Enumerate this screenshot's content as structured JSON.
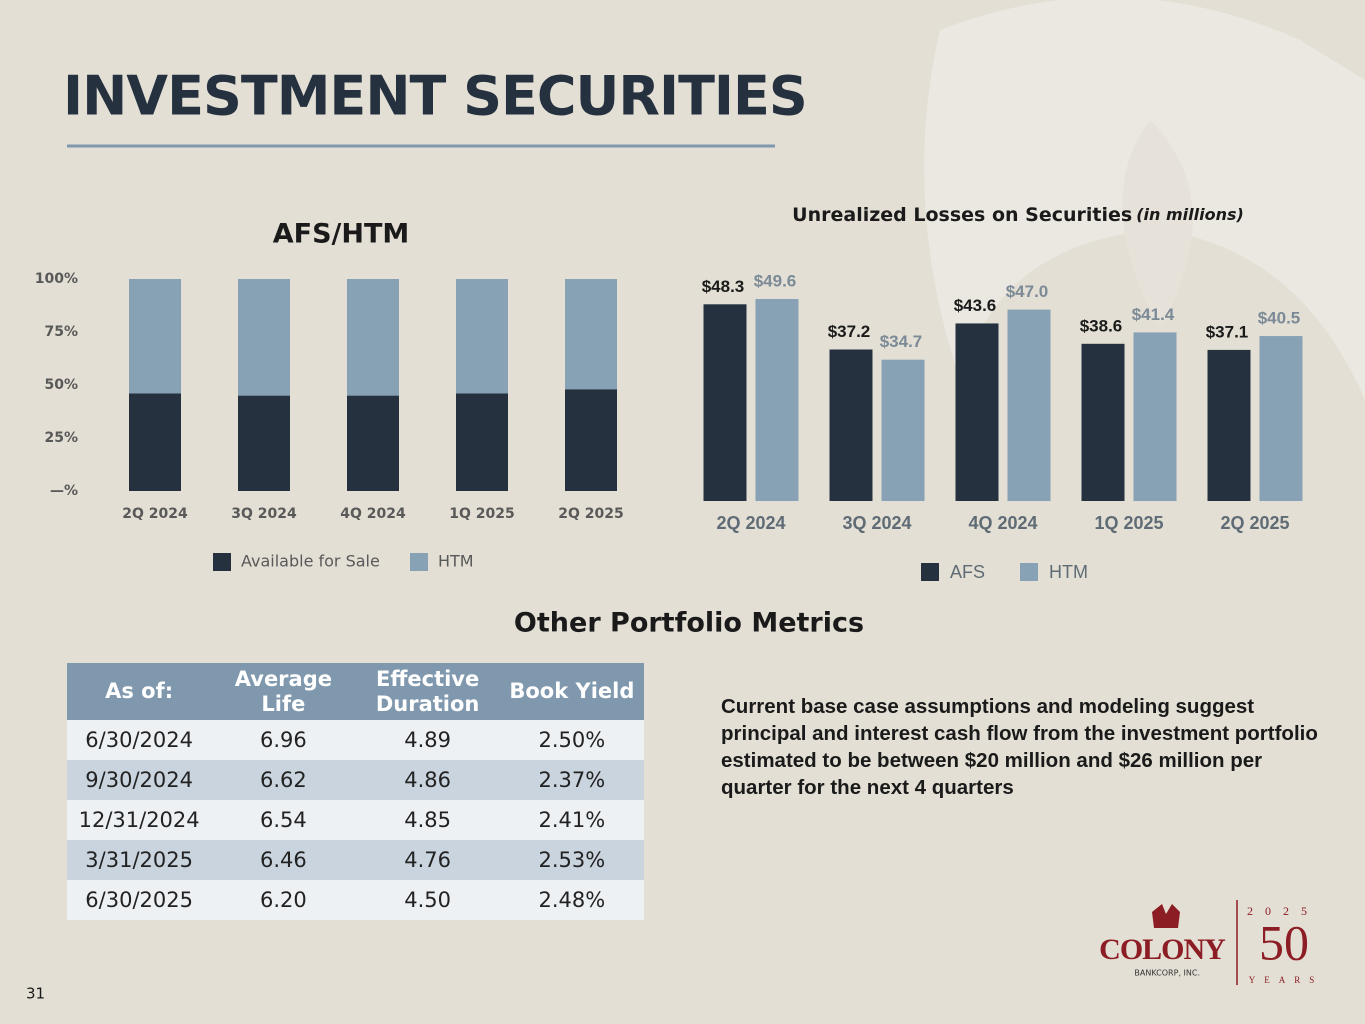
{
  "title": "INVESTMENT SECURITIES",
  "chart_data": [
    {
      "type": "bar",
      "stacked": true,
      "title": "AFS/HTM",
      "categories": [
        "2Q 2024",
        "3Q 2024",
        "4Q 2024",
        "1Q 2025",
        "2Q 2025"
      ],
      "series": [
        {
          "name": "Available for Sale",
          "color": "#25313f",
          "values": [
            46,
            45,
            45,
            46,
            48
          ]
        },
        {
          "name": "HTM",
          "color": "#87a1b5",
          "values": [
            54,
            55,
            55,
            54,
            52
          ]
        }
      ],
      "ylim": [
        0,
        100
      ],
      "yticks": [
        {
          "value": 0,
          "label": "—%"
        },
        {
          "value": 25,
          "label": "25%"
        },
        {
          "value": 50,
          "label": "50%"
        },
        {
          "value": 75,
          "label": "75%"
        },
        {
          "value": 100,
          "label": "100%"
        }
      ],
      "grid": false,
      "legend": "bottom"
    },
    {
      "type": "bar",
      "stacked": false,
      "title": "Unrealized Losses on Securities",
      "subtitle": "(in millions)",
      "categories": [
        "2Q 2024",
        "3Q 2024",
        "4Q 2024",
        "1Q 2025",
        "2Q 2025"
      ],
      "series": [
        {
          "name": "AFS",
          "color": "#25313f",
          "label_color": "#1a1a1a",
          "values": [
            48.3,
            37.2,
            43.6,
            38.6,
            37.1
          ],
          "value_labels": [
            "$48.3",
            "$37.2",
            "$43.6",
            "$38.6",
            "$37.1"
          ]
        },
        {
          "name": "HTM",
          "color": "#87a1b5",
          "label_color": "#7b8a96",
          "values": [
            49.6,
            34.7,
            47.0,
            41.4,
            40.5
          ],
          "value_labels": [
            "$49.6",
            "$34.7",
            "$47.0",
            "$41.4",
            "$40.5"
          ]
        }
      ],
      "grid": false,
      "legend": "bottom"
    }
  ],
  "metrics_title": "Other Portfolio Metrics",
  "table": {
    "headers": [
      "As of:",
      "Average Life",
      "Effective Duration",
      "Book Yield"
    ],
    "rows": [
      [
        "6/30/2024",
        "6.96",
        "4.89",
        "2.50%"
      ],
      [
        "9/30/2024",
        "6.62",
        "4.86",
        "2.37%"
      ],
      [
        "12/31/2024",
        "6.54",
        "4.85",
        "2.41%"
      ],
      [
        "3/31/2025",
        "6.46",
        "4.76",
        "2.53%"
      ],
      [
        "6/30/2025",
        "6.20",
        "4.50",
        "2.48%"
      ]
    ]
  },
  "note": "Current base case assumptions and modeling suggest principal and interest cash flow from the investment portfolio estimated to be between $20 million and $26 million per quarter for the next 4 quarters",
  "logo": {
    "name": "COLONY",
    "sub": "BANKCORP, INC.",
    "year": "2025",
    "anniversary": "50",
    "years": "YEARS"
  },
  "page_number": "31"
}
